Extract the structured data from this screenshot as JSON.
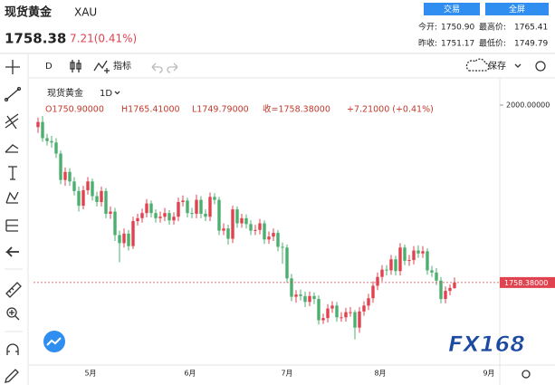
{
  "header": {
    "name": "现货黄金",
    "symbol": "XAU",
    "price": "1758.38",
    "change": "7.21(0.41%)",
    "buttons": [
      "交易",
      "全屏"
    ],
    "stats": [
      {
        "label": "今开:",
        "value": "1750.90"
      },
      {
        "label": "最高价:",
        "value": "1765.41"
      },
      {
        "label": "昨收:",
        "value": "1751.17"
      },
      {
        "label": "最低价:",
        "value": "1749.79"
      }
    ]
  },
  "toolbar": {
    "interval": "D",
    "indicators": "指标",
    "save": "保存"
  },
  "legend": {
    "name": "现货黄金",
    "interval": "1D",
    "items": [
      "O1750.90000",
      "H1765.41000",
      "L1749.79000",
      "收=1758.38000",
      "+7.21000 (+0.41%)"
    ]
  },
  "watermark": "FX168",
  "chart_data": {
    "type": "candlestick",
    "open": [
      1970,
      1977,
      1955,
      1951,
      1949,
      1934,
      1898,
      1909,
      1896,
      1883,
      1863,
      1884,
      1896,
      1876,
      1868,
      1883,
      1852,
      1855,
      1823,
      1812,
      1825,
      1808,
      1842,
      1846,
      1853,
      1866,
      1853,
      1846,
      1848,
      1853,
      1843,
      1848,
      1868,
      1870,
      1853,
      1852,
      1871,
      1852,
      1848,
      1875,
      1871,
      1829,
      1832,
      1818,
      1858,
      1839,
      1846,
      1838,
      1829,
      1830,
      1839,
      1817,
      1821,
      1826,
      1807,
      1806,
      1764,
      1739,
      1742,
      1740,
      1732,
      1740,
      1736,
      1707,
      1710,
      1723,
      1727,
      1711,
      1711,
      1718,
      1718,
      1697,
      1719,
      1727,
      1737,
      1754,
      1766,
      1776,
      1775,
      1790,
      1774,
      1806,
      1788,
      1789,
      1802,
      1798,
      1801,
      1775,
      1772,
      1761,
      1736,
      1747,
      1750.9
    ],
    "high": [
      1983,
      1985,
      1961,
      1958,
      1955,
      1938,
      1915,
      1914,
      1902,
      1889,
      1890,
      1902,
      1900,
      1882,
      1889,
      1887,
      1862,
      1860,
      1829,
      1832,
      1830,
      1848,
      1852,
      1859,
      1872,
      1870,
      1858,
      1855,
      1860,
      1857,
      1854,
      1874,
      1877,
      1874,
      1860,
      1878,
      1876,
      1858,
      1881,
      1880,
      1875,
      1839,
      1837,
      1863,
      1862,
      1852,
      1851,
      1843,
      1837,
      1845,
      1843,
      1828,
      1832,
      1830,
      1813,
      1810,
      1770,
      1748,
      1749,
      1746,
      1746,
      1745,
      1741,
      1716,
      1729,
      1733,
      1732,
      1718,
      1724,
      1725,
      1721,
      1725,
      1733,
      1743,
      1760,
      1772,
      1782,
      1782,
      1796,
      1795,
      1812,
      1810,
      1796,
      1808,
      1809,
      1808,
      1805,
      1781,
      1778,
      1766,
      1753,
      1756,
      1765.41
    ],
    "low": [
      1962,
      1950,
      1945,
      1942,
      1928,
      1892,
      1890,
      1890,
      1877,
      1855,
      1858,
      1878,
      1870,
      1862,
      1862,
      1846,
      1845,
      1815,
      1786,
      1806,
      1802,
      1804,
      1836,
      1840,
      1847,
      1847,
      1840,
      1840,
      1842,
      1837,
      1837,
      1842,
      1862,
      1847,
      1846,
      1846,
      1846,
      1842,
      1842,
      1865,
      1823,
      1823,
      1810,
      1812,
      1833,
      1833,
      1832,
      1823,
      1823,
      1824,
      1811,
      1811,
      1815,
      1801,
      1784,
      1758,
      1733,
      1731,
      1734,
      1725,
      1726,
      1729,
      1701,
      1702,
      1704,
      1717,
      1705,
      1705,
      1705,
      1712,
      1681,
      1690,
      1713,
      1721,
      1731,
      1748,
      1760,
      1768,
      1769,
      1768,
      1768,
      1782,
      1781,
      1783,
      1792,
      1792,
      1769,
      1766,
      1755,
      1730,
      1730,
      1741,
      1749.79
    ],
    "close": [
      1977,
      1955,
      1951,
      1949,
      1934,
      1898,
      1909,
      1896,
      1883,
      1863,
      1884,
      1896,
      1876,
      1868,
      1883,
      1852,
      1855,
      1823,
      1812,
      1825,
      1808,
      1842,
      1846,
      1853,
      1866,
      1853,
      1846,
      1848,
      1853,
      1843,
      1848,
      1868,
      1870,
      1853,
      1852,
      1871,
      1852,
      1848,
      1875,
      1871,
      1829,
      1832,
      1818,
      1858,
      1839,
      1846,
      1838,
      1829,
      1830,
      1839,
      1817,
      1821,
      1826,
      1807,
      1806,
      1764,
      1739,
      1742,
      1740,
      1732,
      1740,
      1736,
      1707,
      1710,
      1723,
      1727,
      1711,
      1711,
      1718,
      1718,
      1697,
      1719,
      1727,
      1737,
      1754,
      1766,
      1776,
      1775,
      1790,
      1774,
      1806,
      1788,
      1789,
      1802,
      1798,
      1801,
      1775,
      1772,
      1761,
      1736,
      1747,
      1751,
      1758.38
    ],
    "up_color": "#e0434f",
    "down_color": "#4caf6f",
    "xlim": [
      -1,
      102
    ],
    "xticks": [
      {
        "value": 11.6,
        "label": "5月"
      },
      {
        "value": 33.6,
        "label": "6月"
      },
      {
        "value": 55,
        "label": "7月"
      },
      {
        "value": 75.6,
        "label": "8月"
      },
      {
        "value": 99.6,
        "label": "9月"
      }
    ],
    "ylim": [
      1646,
      2037
    ],
    "yticks": [
      {
        "value": 2000,
        "label": "2000.00000"
      }
    ],
    "last_label": "1758.38000"
  }
}
